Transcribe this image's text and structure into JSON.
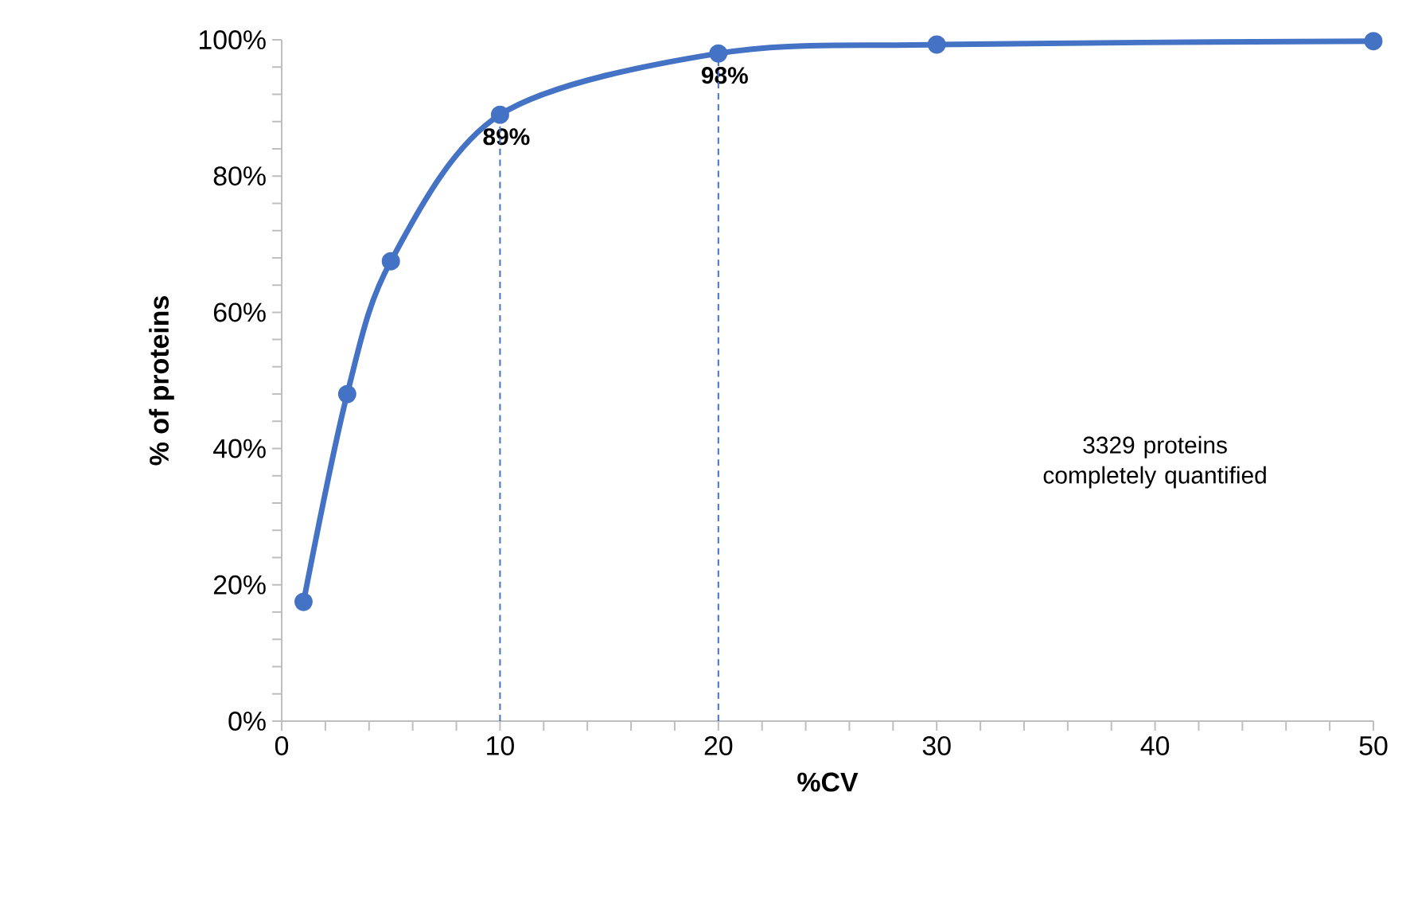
{
  "chart_data": {
    "type": "line",
    "xlabel": "%CV",
    "ylabel": "% of proteins",
    "series": [
      {
        "color": "#4472c4",
        "x": [
          1,
          3,
          5,
          10,
          20,
          30,
          50
        ],
        "values": [
          17.5,
          48,
          67.5,
          89,
          98,
          99.3,
          99.8
        ],
        "value_labels": [
          null,
          null,
          null,
          "89%",
          "98%",
          null,
          null
        ]
      }
    ],
    "xlim": [
      0,
      50
    ],
    "xticks": [
      0,
      10,
      20,
      30,
      40,
      50
    ],
    "ylim": [
      0,
      100
    ],
    "yticks": [
      {
        "value": 0,
        "label": "0%"
      },
      {
        "value": 20,
        "label": "20%"
      },
      {
        "value": 40,
        "label": "40%"
      },
      {
        "value": 60,
        "label": "60%"
      },
      {
        "value": 80,
        "label": "80%"
      },
      {
        "value": 100,
        "label": "100%"
      }
    ],
    "marker": "circle",
    "line_style": "solid",
    "grid": false,
    "ref_lines": [
      {
        "axis": "x",
        "value": 10,
        "color": "#4472c4",
        "line_style": "dashed"
      },
      {
        "axis": "x",
        "value": 20,
        "color": "#4472c4",
        "line_style": "dashed"
      }
    ],
    "annotations": [
      "3329 proteins completely quantified"
    ]
  }
}
